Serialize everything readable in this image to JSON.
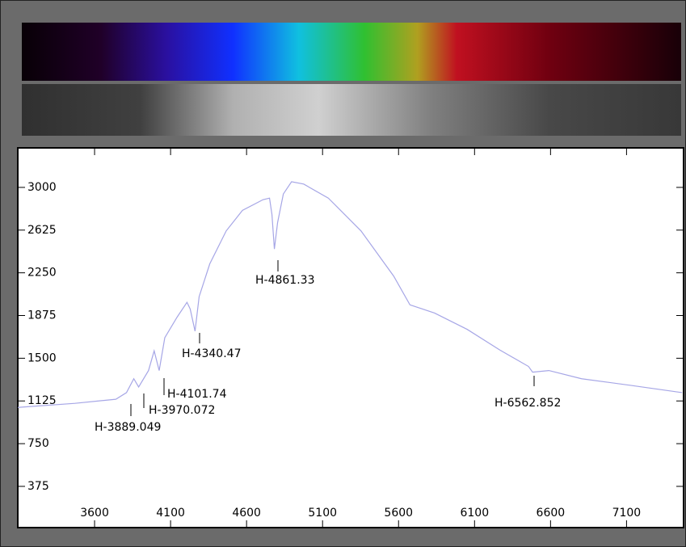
{
  "chart_data": {
    "type": "line",
    "x": [
      3095,
      3471,
      3740,
      3810,
      3858,
      3890,
      3955,
      3992,
      4025,
      4062,
      4143,
      4208,
      4229,
      4261,
      4288,
      4358,
      4466,
      4573,
      4708,
      4751,
      4767,
      4783,
      4804,
      4842,
      4896,
      4976,
      5138,
      5353,
      5568,
      5675,
      5837,
      6052,
      6267,
      6455,
      6482,
      6589,
      6804,
      7127,
      7466
    ],
    "series": [
      {
        "color": "#a6a6e6",
        "values": [
          1068,
          1104,
          1140,
          1198,
          1320,
          1248,
          1392,
          1565,
          1392,
          1680,
          1861,
          1991,
          1933,
          1738,
          2041,
          2329,
          2618,
          2798,
          2892,
          2906,
          2762,
          2459,
          2690,
          2942,
          3050,
          3029,
          2906,
          2618,
          2221,
          1969,
          1897,
          1753,
          1572,
          1428,
          1378,
          1392,
          1320,
          1262,
          1198
        ]
      }
    ],
    "xlim": [
      3100,
      7470
    ],
    "ylim": [
      20,
      3340
    ],
    "xticks": [
      3600,
      4100,
      4600,
      5100,
      5600,
      6100,
      6600,
      7100
    ],
    "yticks": [
      375,
      750,
      1125,
      1500,
      1875,
      2250,
      2625,
      3000
    ],
    "annotations": [
      "H-3889.049",
      "H-3970.072",
      "H-4101.74",
      "H-4340.47",
      "H-4861.33",
      "H-6562.852"
    ]
  }
}
